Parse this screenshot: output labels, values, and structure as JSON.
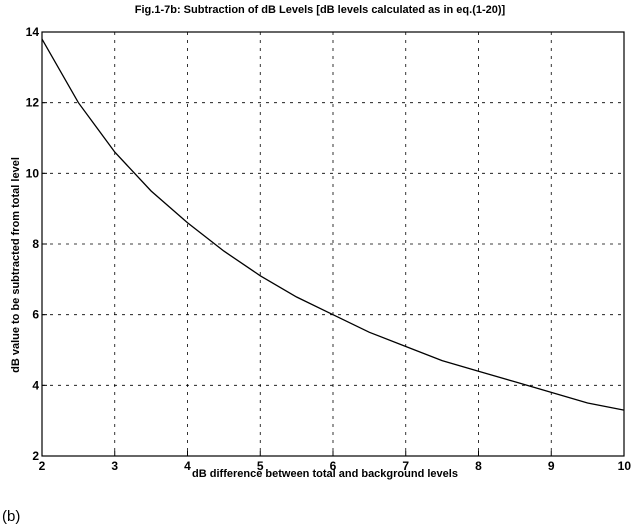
{
  "panel_label": "(b)",
  "chart_data": {
    "type": "line",
    "title": "Fig.1-7b: Subtraction of dB Levels [dB levels calculated as in eq.(1-20)]",
    "xlabel": "dB difference between total and background levels",
    "ylabel": "dB value to be subtracted from total level",
    "xlim": [
      2,
      10
    ],
    "ylim": [
      2,
      14
    ],
    "xticks": [
      "2",
      "3",
      "4",
      "5",
      "6",
      "7",
      "8",
      "9",
      "10"
    ],
    "yticks": [
      "2",
      "4",
      "6",
      "8",
      "10",
      "12",
      "14"
    ],
    "grid": true,
    "series": [
      {
        "x": [
          2.0,
          2.5,
          3.0,
          3.5,
          4.0,
          4.5,
          5.0,
          5.5,
          6.0,
          6.5,
          7.0,
          7.5,
          8.0,
          8.5,
          9.0,
          9.5,
          10.0
        ],
        "values": [
          13.8,
          12.0,
          10.6,
          9.5,
          8.6,
          7.8,
          7.1,
          6.5,
          6.0,
          5.5,
          5.1,
          4.7,
          4.4,
          4.1,
          3.8,
          3.5,
          3.3
        ]
      }
    ]
  }
}
